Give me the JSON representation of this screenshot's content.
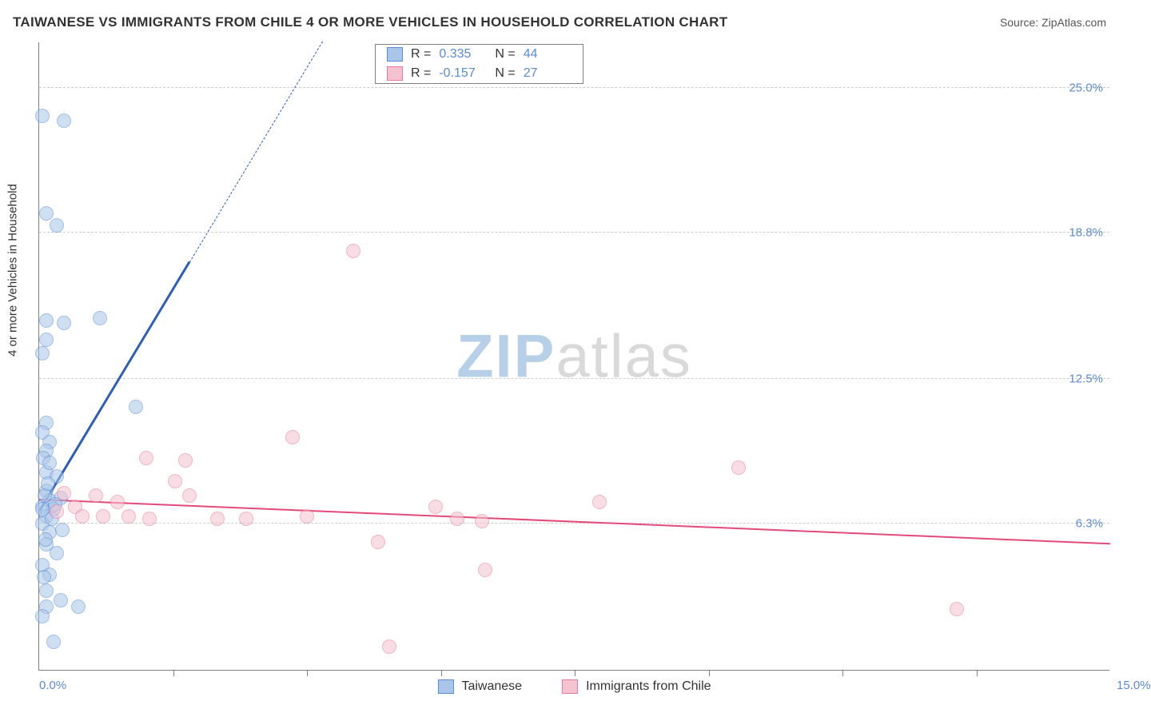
{
  "title": "TAIWANESE VS IMMIGRANTS FROM CHILE 4 OR MORE VEHICLES IN HOUSEHOLD CORRELATION CHART",
  "source": "Source: ZipAtlas.com",
  "watermark": {
    "prefix": "ZIP",
    "suffix": "atlas"
  },
  "ylabel": "4 or more Vehicles in Household",
  "chart": {
    "type": "scatter",
    "xlim": [
      0.0,
      15.0
    ],
    "ylim": [
      0.0,
      27.0
    ],
    "xlim_labels": [
      "0.0%",
      "15.0%"
    ],
    "ytick_labels": [
      "6.3%",
      "12.5%",
      "18.8%",
      "25.0%"
    ],
    "ytick_values": [
      6.3,
      12.5,
      18.8,
      25.0
    ],
    "xtick_count": 8,
    "background_color": "#ffffff",
    "grid_color": "#cccccc",
    "axis_color": "#808080",
    "tick_label_color": "#5b8bd4",
    "marker_radius": 9,
    "marker_opacity": 0.55,
    "series": [
      {
        "name": "Taiwanese",
        "fill_color": "#a9c6e8",
        "stroke_color": "#5b8bd4",
        "R": "0.335",
        "N": "44",
        "trend": {
          "x1": 0.0,
          "y1": 6.8,
          "x2": 2.1,
          "y2": 17.5,
          "color": "#2f5fb5",
          "width": 2.5,
          "extend_dash_to_x": 4.1
        },
        "points": [
          [
            0.05,
            23.8
          ],
          [
            0.35,
            23.6
          ],
          [
            0.1,
            19.6
          ],
          [
            0.25,
            19.1
          ],
          [
            0.1,
            15.0
          ],
          [
            0.35,
            14.9
          ],
          [
            0.85,
            15.1
          ],
          [
            0.1,
            14.2
          ],
          [
            0.05,
            13.6
          ],
          [
            1.35,
            11.3
          ],
          [
            0.1,
            10.6
          ],
          [
            0.05,
            10.2
          ],
          [
            0.15,
            9.8
          ],
          [
            0.1,
            9.4
          ],
          [
            0.1,
            8.5
          ],
          [
            0.25,
            8.3
          ],
          [
            0.1,
            7.7
          ],
          [
            0.15,
            7.3
          ],
          [
            0.3,
            7.4
          ],
          [
            0.05,
            7.0
          ],
          [
            0.2,
            6.9
          ],
          [
            0.1,
            6.6
          ],
          [
            0.05,
            6.3
          ],
          [
            0.15,
            5.9
          ],
          [
            0.1,
            5.4
          ],
          [
            0.25,
            5.0
          ],
          [
            0.05,
            4.5
          ],
          [
            0.15,
            4.1
          ],
          [
            0.1,
            3.4
          ],
          [
            0.3,
            3.0
          ],
          [
            0.1,
            2.7
          ],
          [
            0.55,
            2.7
          ],
          [
            0.05,
            2.3
          ],
          [
            0.2,
            1.2
          ],
          [
            0.05,
            6.9
          ],
          [
            0.08,
            7.5
          ],
          [
            0.12,
            8.0
          ],
          [
            0.18,
            6.5
          ],
          [
            0.22,
            7.1
          ],
          [
            0.06,
            9.1
          ],
          [
            0.14,
            8.9
          ],
          [
            0.07,
            4.0
          ],
          [
            0.33,
            6.0
          ],
          [
            0.09,
            5.6
          ]
        ]
      },
      {
        "name": "Immigrants from Chile",
        "fill_color": "#f5c2cf",
        "stroke_color": "#e77a9a",
        "R": "-0.157",
        "N": "27",
        "trend": {
          "x1": 0.0,
          "y1": 7.3,
          "x2": 15.0,
          "y2": 5.4,
          "color": "#e24a7a",
          "width": 2,
          "extend_dash_to_x": null
        },
        "points": [
          [
            4.4,
            18.0
          ],
          [
            3.55,
            10.0
          ],
          [
            1.5,
            9.1
          ],
          [
            2.05,
            9.0
          ],
          [
            9.8,
            8.7
          ],
          [
            1.9,
            8.1
          ],
          [
            2.1,
            7.5
          ],
          [
            0.8,
            7.5
          ],
          [
            1.1,
            7.2
          ],
          [
            0.5,
            7.0
          ],
          [
            0.35,
            7.6
          ],
          [
            0.25,
            6.8
          ],
          [
            0.6,
            6.6
          ],
          [
            0.9,
            6.6
          ],
          [
            1.25,
            6.6
          ],
          [
            1.55,
            6.5
          ],
          [
            2.5,
            6.5
          ],
          [
            2.9,
            6.5
          ],
          [
            3.75,
            6.6
          ],
          [
            5.55,
            7.0
          ],
          [
            5.85,
            6.5
          ],
          [
            6.2,
            6.4
          ],
          [
            7.85,
            7.2
          ],
          [
            4.75,
            5.5
          ],
          [
            6.25,
            4.3
          ],
          [
            4.9,
            1.0
          ],
          [
            12.85,
            2.6
          ]
        ]
      }
    ]
  },
  "stats_legend": {
    "r_label": "R =",
    "n_label": "N ="
  },
  "bottom_legend": {
    "items": [
      "Taiwanese",
      "Immigrants from Chile"
    ]
  }
}
